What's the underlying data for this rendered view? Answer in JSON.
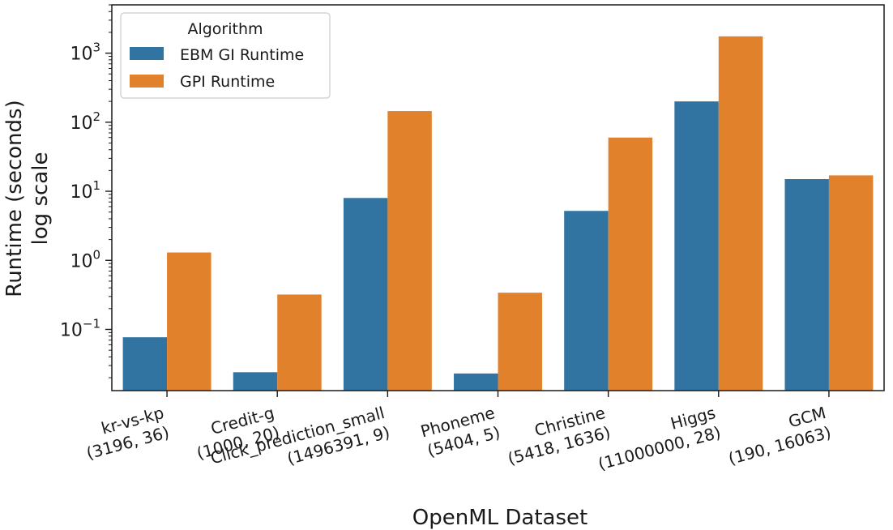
{
  "chart_data": {
    "type": "bar",
    "xlabel": "OpenML Dataset",
    "ylabel_lines": [
      "Runtime (seconds)",
      "log scale"
    ],
    "yscale": "log",
    "ylim": [
      0.013,
      5000
    ],
    "yticks": [
      {
        "value": 0.1,
        "base": "10",
        "exp": "−1"
      },
      {
        "value": 1,
        "base": "10",
        "exp": "0"
      },
      {
        "value": 10,
        "base": "10",
        "exp": "1"
      },
      {
        "value": 100,
        "base": "10",
        "exp": "2"
      },
      {
        "value": 1000,
        "base": "10",
        "exp": "3"
      }
    ],
    "categories": [
      {
        "name": "kr-vs-kp",
        "shape": "(3196, 36)"
      },
      {
        "name": "Credit-g",
        "shape": "(1000, 20)"
      },
      {
        "name": "Click_prediction_small",
        "shape": "(1496391, 9)"
      },
      {
        "name": "Phoneme",
        "shape": "(5404, 5)"
      },
      {
        "name": "Christine",
        "shape": "(5418, 1636)"
      },
      {
        "name": "Higgs",
        "shape": "(11000000, 28)"
      },
      {
        "name": "GCM",
        "shape": "(190, 16063)"
      }
    ],
    "legend": {
      "title": "Algorithm",
      "position": "top-left"
    },
    "series": [
      {
        "name": "EBM GI Runtime",
        "color": "#3274a1",
        "values": [
          0.077,
          0.024,
          8.0,
          0.023,
          5.2,
          200,
          15
        ]
      },
      {
        "name": "GPI Runtime",
        "color": "#e1812c",
        "values": [
          1.3,
          0.32,
          145,
          0.34,
          60,
          1750,
          17
        ]
      }
    ]
  }
}
